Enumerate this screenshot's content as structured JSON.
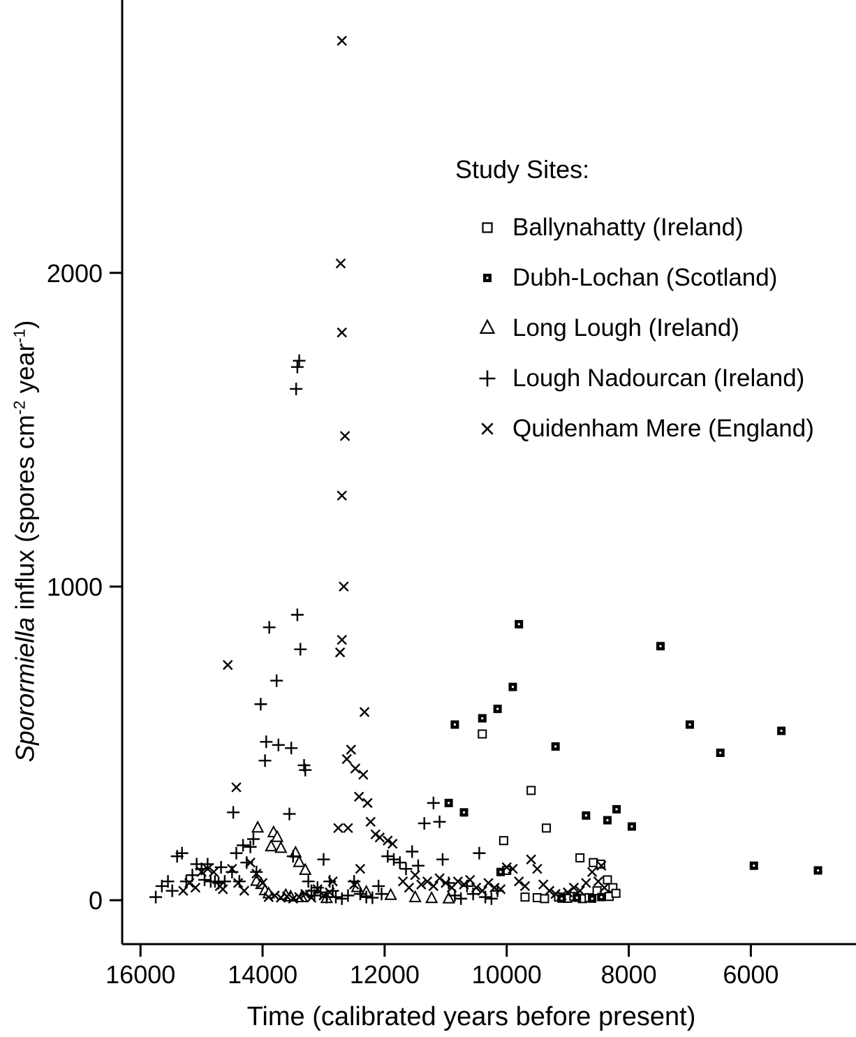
{
  "figure": {
    "x_label": "Time (calibrated years before present)",
    "y_label": {
      "italic": "Sporormiella",
      "pre": " influx (spores cm",
      "sup1": "-2",
      "mid": " year",
      "sup2": "-1",
      "post": ")"
    },
    "legend": {
      "title": "Study Sites:"
    }
  },
  "chart_data": {
    "type": "scatter",
    "title": "",
    "xlabel": "Time (calibrated years before present)",
    "ylabel": "Sporormiella influx (spores cm-2 year-1)",
    "x_reversed": true,
    "xlim": [
      16300,
      4300
    ],
    "ylim": [
      -140,
      2870
    ],
    "x_ticks": [
      16000,
      14000,
      12000,
      10000,
      8000,
      6000
    ],
    "y_ticks": [
      0,
      1000,
      2000
    ],
    "grid": false,
    "legend_position": "inside upper right",
    "series": [
      {
        "name": "Ballynahatty (Ireland)",
        "marker": "open-square",
        "points": [
          [
            10400,
            530
          ],
          [
            9600,
            350
          ],
          [
            9350,
            230
          ],
          [
            10050,
            190
          ],
          [
            8800,
            135
          ],
          [
            8580,
            120
          ],
          [
            8460,
            115
          ],
          [
            10000,
            95
          ],
          [
            8350,
            65
          ],
          [
            8260,
            40
          ],
          [
            9700,
            10
          ],
          [
            9500,
            8
          ],
          [
            9380,
            5
          ],
          [
            9150,
            10
          ],
          [
            9000,
            6
          ],
          [
            8900,
            12
          ],
          [
            8760,
            5
          ],
          [
            8650,
            8
          ],
          [
            8520,
            30
          ],
          [
            8320,
            12
          ],
          [
            8210,
            22
          ]
        ]
      },
      {
        "name": "Dubh-Lochan (Scotland)",
        "marker": "filled-square",
        "points": [
          [
            9800,
            880
          ],
          [
            7480,
            810
          ],
          [
            9900,
            680
          ],
          [
            10150,
            610
          ],
          [
            10400,
            580
          ],
          [
            10850,
            560
          ],
          [
            7000,
            560
          ],
          [
            5500,
            540
          ],
          [
            9200,
            490
          ],
          [
            6500,
            470
          ],
          [
            10950,
            310
          ],
          [
            10700,
            280
          ],
          [
            8700,
            270
          ],
          [
            8200,
            290
          ],
          [
            8350,
            255
          ],
          [
            7950,
            235
          ],
          [
            5950,
            110
          ],
          [
            4900,
            95
          ],
          [
            10100,
            90
          ],
          [
            8450,
            10
          ],
          [
            9100,
            5
          ],
          [
            8850,
            8
          ],
          [
            8600,
            5
          ]
        ]
      },
      {
        "name": "Long Lough (Ireland)",
        "marker": "open-triangle",
        "points": [
          [
            14080,
            230
          ],
          [
            13820,
            215
          ],
          [
            13760,
            200
          ],
          [
            13860,
            170
          ],
          [
            13700,
            165
          ],
          [
            13460,
            150
          ],
          [
            13400,
            120
          ],
          [
            13300,
            95
          ],
          [
            14100,
            60
          ],
          [
            14020,
            50
          ],
          [
            13960,
            30
          ],
          [
            13900,
            20
          ],
          [
            13620,
            15
          ],
          [
            13540,
            10
          ],
          [
            13360,
            8
          ],
          [
            12950,
            5
          ],
          [
            12450,
            40
          ],
          [
            12300,
            25
          ],
          [
            11900,
            15
          ],
          [
            11500,
            8
          ],
          [
            11230,
            5
          ],
          [
            10950,
            4
          ]
        ]
      },
      {
        "name": "Lough Nadourcan (Ireland)",
        "marker": "plus",
        "points": [
          [
            15750,
            10
          ],
          [
            15650,
            45
          ],
          [
            15550,
            60
          ],
          [
            15480,
            30
          ],
          [
            15400,
            140
          ],
          [
            15320,
            150
          ],
          [
            15250,
            60
          ],
          [
            15150,
            80
          ],
          [
            15080,
            115
          ],
          [
            15000,
            100
          ],
          [
            14950,
            65
          ],
          [
            14900,
            115
          ],
          [
            14850,
            60
          ],
          [
            14780,
            60
          ],
          [
            14720,
            55
          ],
          [
            14680,
            105
          ],
          [
            14620,
            60
          ],
          [
            14480,
            280
          ],
          [
            14500,
            90
          ],
          [
            14430,
            150
          ],
          [
            14380,
            60
          ],
          [
            14320,
            175
          ],
          [
            14260,
            120
          ],
          [
            14200,
            170
          ],
          [
            14150,
            195
          ],
          [
            14100,
            90
          ],
          [
            14030,
            625
          ],
          [
            13960,
            445
          ],
          [
            13940,
            505
          ],
          [
            13890,
            870
          ],
          [
            13770,
            700
          ],
          [
            13740,
            495
          ],
          [
            13530,
            485
          ],
          [
            13560,
            275
          ],
          [
            13500,
            140
          ],
          [
            13450,
            1630
          ],
          [
            13430,
            1700
          ],
          [
            13400,
            1720
          ],
          [
            13430,
            910
          ],
          [
            13380,
            800
          ],
          [
            13320,
            430
          ],
          [
            13300,
            415
          ],
          [
            13250,
            60
          ],
          [
            13200,
            30
          ],
          [
            13150,
            15
          ],
          [
            13100,
            40
          ],
          [
            13050,
            25
          ],
          [
            13000,
            130
          ],
          [
            12950,
            10
          ],
          [
            12900,
            60
          ],
          [
            12850,
            30
          ],
          [
            12800,
            10
          ],
          [
            12700,
            5
          ],
          [
            12600,
            15
          ],
          [
            12500,
            60
          ],
          [
            12400,
            20
          ],
          [
            12300,
            10
          ],
          [
            12200,
            8
          ],
          [
            12100,
            45
          ],
          [
            12050,
            20
          ],
          [
            11950,
            140
          ],
          [
            11850,
            130
          ],
          [
            11750,
            120
          ],
          [
            11650,
            100
          ],
          [
            11550,
            155
          ],
          [
            11450,
            110
          ],
          [
            11350,
            245
          ],
          [
            11200,
            310
          ],
          [
            11100,
            250
          ],
          [
            11050,
            130
          ],
          [
            10950,
            55
          ],
          [
            10850,
            15
          ],
          [
            10750,
            5
          ],
          [
            10650,
            45
          ],
          [
            10550,
            20
          ],
          [
            10450,
            150
          ],
          [
            10350,
            10
          ],
          [
            10250,
            5
          ],
          [
            10150,
            30
          ]
        ]
      },
      {
        "name": "Quidenham Mere (England)",
        "marker": "x",
        "points": [
          [
            12700,
            2740
          ],
          [
            12720,
            2030
          ],
          [
            12700,
            1810
          ],
          [
            12650,
            1480
          ],
          [
            12700,
            1290
          ],
          [
            12670,
            1000
          ],
          [
            12700,
            830
          ],
          [
            12730,
            790
          ],
          [
            14570,
            750
          ],
          [
            14430,
            360
          ],
          [
            12330,
            600
          ],
          [
            12550,
            480
          ],
          [
            12620,
            450
          ],
          [
            12480,
            420
          ],
          [
            12350,
            400
          ],
          [
            12420,
            330
          ],
          [
            12280,
            310
          ],
          [
            12760,
            230
          ],
          [
            12600,
            230
          ],
          [
            12230,
            250
          ],
          [
            12150,
            210
          ],
          [
            12080,
            200
          ],
          [
            11950,
            190
          ],
          [
            11870,
            180
          ],
          [
            15300,
            30
          ],
          [
            15200,
            55
          ],
          [
            15100,
            40
          ],
          [
            15000,
            90
          ],
          [
            14900,
            100
          ],
          [
            14800,
            90
          ],
          [
            14700,
            45
          ],
          [
            14650,
            35
          ],
          [
            14500,
            100
          ],
          [
            14400,
            55
          ],
          [
            14300,
            30
          ],
          [
            14200,
            120
          ],
          [
            14100,
            85
          ],
          [
            14000,
            55
          ],
          [
            13900,
            10
          ],
          [
            13800,
            15
          ],
          [
            13700,
            8
          ],
          [
            13600,
            12
          ],
          [
            13500,
            5
          ],
          [
            13400,
            10
          ],
          [
            13300,
            20
          ],
          [
            13200,
            8
          ],
          [
            13100,
            35
          ],
          [
            13000,
            15
          ],
          [
            12900,
            25
          ],
          [
            12850,
            60
          ],
          [
            12500,
            50
          ],
          [
            12400,
            100
          ],
          [
            11700,
            60
          ],
          [
            11600,
            40
          ],
          [
            11500,
            80
          ],
          [
            11400,
            50
          ],
          [
            11300,
            60
          ],
          [
            11200,
            45
          ],
          [
            11100,
            70
          ],
          [
            11000,
            55
          ],
          [
            10900,
            40
          ],
          [
            10800,
            60
          ],
          [
            10700,
            50
          ],
          [
            10600,
            65
          ],
          [
            10500,
            40
          ],
          [
            10400,
            30
          ],
          [
            10300,
            55
          ],
          [
            10200,
            40
          ],
          [
            10100,
            35
          ],
          [
            10000,
            105
          ],
          [
            9900,
            100
          ],
          [
            9800,
            60
          ],
          [
            9700,
            45
          ],
          [
            9600,
            130
          ],
          [
            9500,
            100
          ],
          [
            9400,
            50
          ],
          [
            9300,
            30
          ],
          [
            9200,
            20
          ],
          [
            9100,
            15
          ],
          [
            9000,
            25
          ],
          [
            8900,
            40
          ],
          [
            8800,
            30
          ],
          [
            8700,
            55
          ],
          [
            8600,
            90
          ],
          [
            8500,
            60
          ],
          [
            8450,
            110
          ],
          [
            8400,
            40
          ]
        ]
      }
    ]
  }
}
